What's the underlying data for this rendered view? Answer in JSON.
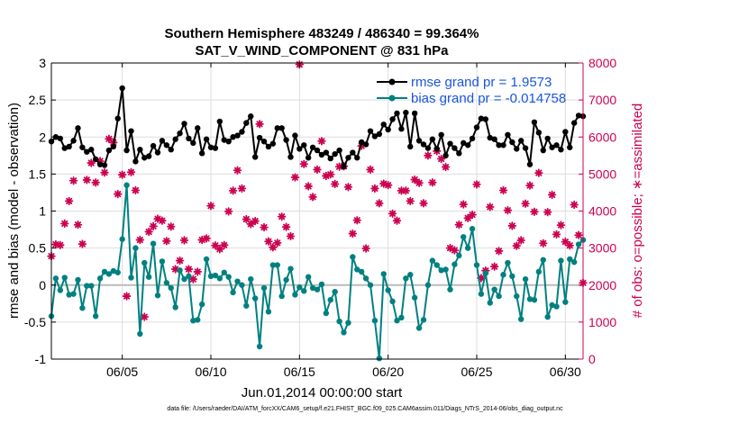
{
  "chart_data": {
    "type": "line",
    "title_line1": "Southern Hemisphere 483249 / 486340 = 99.364%",
    "title_line2": "SAT_V_WIND_COMPONENT @ 831 hPa",
    "xlabel": "Jun.01,2014 00:00:00 start",
    "ylabel_left": "rmse and bias (model - observation)",
    "ylabel_right": "# of obs: o=possible; ∗=assimilated",
    "xlim": [
      1,
      31
    ],
    "ylim_left": [
      -1,
      3
    ],
    "ylim_right": [
      0,
      8000
    ],
    "x_ticks": [
      5,
      10,
      15,
      20,
      25,
      30
    ],
    "x_tick_labels": [
      "06/05",
      "06/10",
      "06/15",
      "06/20",
      "06/25",
      "06/30"
    ],
    "y_ticks_left": [
      "-1",
      "-0.5",
      "0",
      "0.5",
      "1",
      "1.5",
      "2",
      "2.5",
      "3"
    ],
    "y_ticks_right": [
      "0",
      "1000",
      "2000",
      "3000",
      "4000",
      "5000",
      "6000",
      "7000",
      "8000"
    ],
    "grid": true,
    "legend_location": "top-right",
    "footer": "data file: /Users/raeder/DAI/ATM_forcXX/CAM6_setup/f.e21.FHIST_BGC.f09_025.CAM6assim.011/Diags_NTrS_2014-06/obs_diag_output.nc",
    "colors": {
      "rmse": "#000000",
      "bias": "#008080",
      "obs": "#cc0050",
      "zero_line": "#bbbbbb",
      "grid": "#dddddd"
    },
    "series": [
      {
        "name": "rmse grand pr = 1.9573",
        "axis": "left",
        "x": [
          1.0,
          1.25,
          1.5,
          1.75,
          2.0,
          2.25,
          2.5,
          2.75,
          3.0,
          3.25,
          3.5,
          3.75,
          4.0,
          4.25,
          4.5,
          4.75,
          5.0,
          5.25,
          5.5,
          5.75,
          6.0,
          6.25,
          6.5,
          6.75,
          7.0,
          7.25,
          7.5,
          7.75,
          8.0,
          8.25,
          8.5,
          8.75,
          9.0,
          9.25,
          9.5,
          9.75,
          10.0,
          10.25,
          10.5,
          10.75,
          11.0,
          11.25,
          11.5,
          11.75,
          12.0,
          12.25,
          12.5,
          12.75,
          13.0,
          13.25,
          13.5,
          13.75,
          14.0,
          14.25,
          14.5,
          14.75,
          15.0,
          15.25,
          15.5,
          15.75,
          16.0,
          16.25,
          16.5,
          16.75,
          17.0,
          17.25,
          17.5,
          17.75,
          18.0,
          18.25,
          18.5,
          18.75,
          19.0,
          19.25,
          19.5,
          19.75,
          20.0,
          20.25,
          20.5,
          20.75,
          21.0,
          21.25,
          21.5,
          21.75,
          22.0,
          22.25,
          22.5,
          22.75,
          23.0,
          23.25,
          23.5,
          23.75,
          24.0,
          24.25,
          24.5,
          24.75,
          25.0,
          25.25,
          25.5,
          25.75,
          26.0,
          26.25,
          26.5,
          26.75,
          27.0,
          27.25,
          27.5,
          27.75,
          28.0,
          28.25,
          28.5,
          28.75,
          29.0,
          29.25,
          29.5,
          29.75,
          30.0,
          30.25,
          30.5,
          30.75,
          31.0
        ],
        "values": [
          1.94,
          2.0,
          1.98,
          1.85,
          1.87,
          1.95,
          2.12,
          1.86,
          1.8,
          1.83,
          1.7,
          1.63,
          1.62,
          1.82,
          1.87,
          2.25,
          2.66,
          1.82,
          2.08,
          1.67,
          1.83,
          1.72,
          1.74,
          1.88,
          1.79,
          1.95,
          1.89,
          1.83,
          1.97,
          2.05,
          2.18,
          1.98,
          1.92,
          2.12,
          1.78,
          1.97,
          1.86,
          1.85,
          2.21,
          1.96,
          1.94,
          2.0,
          2.02,
          2.07,
          2.19,
          2.28,
          1.73,
          1.99,
          1.94,
          1.87,
          1.91,
          2.12,
          2.12,
          1.96,
          1.73,
          2.02,
          1.84,
          1.89,
          1.72,
          1.86,
          1.82,
          1.76,
          1.79,
          1.71,
          1.77,
          1.82,
          1.6,
          1.72,
          1.79,
          1.72,
          1.93,
          1.9,
          2.08,
          2.01,
          2.04,
          2.17,
          2.1,
          2.24,
          2.32,
          2.11,
          2.33,
          1.87,
          2.32,
          1.95,
          1.9,
          1.85,
          1.97,
          1.84,
          2.03,
          1.75,
          1.91,
          1.85,
          1.78,
          1.92,
          1.89,
          1.98,
          2.13,
          2.25,
          2.24,
          1.99,
          1.97,
          1.89,
          1.89,
          2.03,
          1.93,
          1.84,
          1.95,
          1.85,
          1.63,
          2.2,
          2.06,
          1.82,
          1.98,
          1.86,
          1.89,
          1.83,
          2.07,
          1.86,
          2.19,
          2.29,
          2.28
        ]
      },
      {
        "name": "bias grand pr = -0.014758",
        "axis": "left",
        "x": [
          1.0,
          1.25,
          1.5,
          1.75,
          2.0,
          2.25,
          2.5,
          2.75,
          3.0,
          3.25,
          3.5,
          3.75,
          4.0,
          4.25,
          4.5,
          4.75,
          5.0,
          5.25,
          5.5,
          5.75,
          6.0,
          6.25,
          6.5,
          6.75,
          7.0,
          7.25,
          7.5,
          7.75,
          8.0,
          8.25,
          8.5,
          8.75,
          9.0,
          9.25,
          9.5,
          9.75,
          10.0,
          10.25,
          10.5,
          10.75,
          11.0,
          11.25,
          11.5,
          11.75,
          12.0,
          12.25,
          12.5,
          12.75,
          13.0,
          13.25,
          13.5,
          13.75,
          14.0,
          14.25,
          14.5,
          14.75,
          15.0,
          15.25,
          15.5,
          15.75,
          16.0,
          16.25,
          16.5,
          16.75,
          17.0,
          17.25,
          17.5,
          17.75,
          18.0,
          18.25,
          18.5,
          18.75,
          19.0,
          19.25,
          19.5,
          19.75,
          20.0,
          20.25,
          20.5,
          20.75,
          21.0,
          21.25,
          21.5,
          21.75,
          22.0,
          22.25,
          22.5,
          22.75,
          23.0,
          23.25,
          23.5,
          23.75,
          24.0,
          24.25,
          24.5,
          24.75,
          25.0,
          25.25,
          25.5,
          25.75,
          26.0,
          26.25,
          26.5,
          26.75,
          27.0,
          27.25,
          27.5,
          27.75,
          28.0,
          28.25,
          28.5,
          28.75,
          29.0,
          29.25,
          29.5,
          29.75,
          30.0,
          30.25,
          30.5,
          30.75,
          31.0
        ],
        "values": [
          -0.42,
          0.09,
          -0.07,
          0.1,
          -0.13,
          -0.12,
          0.07,
          -0.31,
          -0.01,
          -0.01,
          -0.42,
          0.09,
          0.18,
          0.15,
          0.19,
          0.17,
          0.62,
          1.35,
          0.1,
          0.5,
          -0.66,
          0.3,
          0.11,
          0.56,
          -0.14,
          0.32,
          0.03,
          -0.04,
          -0.3,
          0.2,
          0.08,
          0.12,
          -0.48,
          -0.47,
          -0.26,
          0.35,
          0.12,
          0.13,
          0.09,
          0.17,
          0.11,
          -0.1,
          0.05,
          0.0,
          -0.28,
          0.08,
          -0.18,
          -0.83,
          -0.04,
          -0.36,
          0.27,
          0.27,
          -0.15,
          0.07,
          0.22,
          -0.13,
          -0.03,
          -0.08,
          0.11,
          -0.04,
          -0.06,
          0.01,
          -0.38,
          -0.2,
          -0.09,
          -0.49,
          -0.64,
          -0.51,
          0.38,
          0.21,
          0.18,
          0.09,
          0.0,
          -0.48,
          -0.99,
          0.15,
          -0.07,
          -0.22,
          -0.48,
          -0.44,
          0.09,
          0.14,
          -0.17,
          -0.58,
          -0.47,
          0.0,
          0.33,
          0.27,
          0.2,
          0.21,
          -0.06,
          0.28,
          0.4,
          0.65,
          0.5,
          0.76,
          0.27,
          -0.12,
          0.16,
          -0.24,
          -0.06,
          -0.15,
          0.14,
          0.3,
          0.12,
          -0.15,
          -0.46,
          0.08,
          -0.19,
          -0.2,
          0.18,
          0.34,
          -0.43,
          -0.27,
          -0.29,
          0.33,
          -0.23,
          0.35,
          0.31,
          0.55,
          0.61
        ]
      },
      {
        "name": "obs assimilated",
        "axis": "right",
        "x": [
          1.0,
          1.25,
          1.5,
          1.75,
          2.0,
          2.25,
          2.5,
          2.75,
          3.0,
          3.25,
          3.5,
          3.75,
          4.0,
          4.25,
          4.5,
          4.75,
          5.0,
          5.25,
          5.5,
          5.75,
          6.0,
          6.25,
          6.5,
          6.75,
          7.0,
          7.25,
          7.5,
          7.75,
          8.0,
          8.25,
          8.5,
          8.75,
          9.0,
          9.25,
          9.5,
          9.75,
          10.0,
          10.25,
          10.5,
          10.75,
          11.0,
          11.25,
          11.5,
          11.75,
          12.0,
          12.25,
          12.5,
          12.75,
          13.0,
          13.25,
          13.5,
          13.75,
          14.0,
          14.25,
          14.5,
          14.75,
          15.0,
          15.25,
          15.5,
          15.75,
          16.0,
          16.25,
          16.5,
          16.75,
          17.0,
          17.25,
          17.5,
          17.75,
          18.0,
          18.25,
          18.5,
          18.75,
          19.0,
          19.25,
          19.5,
          19.75,
          20.0,
          20.25,
          20.5,
          20.75,
          21.0,
          21.25,
          21.5,
          21.75,
          22.0,
          22.25,
          22.5,
          22.75,
          23.0,
          23.25,
          23.5,
          23.75,
          24.0,
          24.25,
          24.5,
          24.75,
          25.0,
          25.25,
          25.5,
          25.75,
          26.0,
          26.25,
          26.5,
          26.75,
          27.0,
          27.25,
          27.5,
          27.75,
          28.0,
          28.25,
          28.5,
          28.75,
          29.0,
          29.25,
          29.5,
          29.75,
          30.0,
          30.25,
          30.5,
          30.75,
          31.0
        ],
        "values": [
          2780,
          3100,
          3080,
          3660,
          4270,
          4820,
          3630,
          3110,
          4840,
          5300,
          4770,
          5350,
          5040,
          5950,
          5850,
          4460,
          4980,
          1700,
          5050,
          4560,
          3220,
          1140,
          3440,
          3590,
          3790,
          3740,
          3190,
          3580,
          2430,
          2660,
          3210,
          2430,
          2160,
          2360,
          3220,
          3260,
          4140,
          3070,
          2970,
          3080,
          3990,
          4550,
          5100,
          4610,
          3780,
          3650,
          3730,
          6350,
          3560,
          3180,
          3020,
          3140,
          3850,
          3570,
          3320,
          4910,
          7960,
          5270,
          4670,
          4380,
          5120,
          5890,
          4950,
          4990,
          4730,
          5200,
          5210,
          4650,
          3390,
          3750,
          5760,
          2990,
          5120,
          4610,
          4210,
          4740,
          4700,
          3930,
          3740,
          4550,
          4550,
          4270,
          4850,
          4760,
          4210,
          5500,
          4770,
          5620,
          5410,
          5190,
          3000,
          2940,
          3630,
          4180,
          3810,
          3900,
          4720,
          2190,
          2390,
          4110,
          2500,
          2920,
          4560,
          4020,
          3600,
          3060,
          3210,
          4200,
          4690,
          3980,
          5030,
          3130,
          3970,
          4440,
          3370,
          3620,
          3170,
          3070,
          4170,
          3350,
          2060
        ]
      }
    ]
  }
}
